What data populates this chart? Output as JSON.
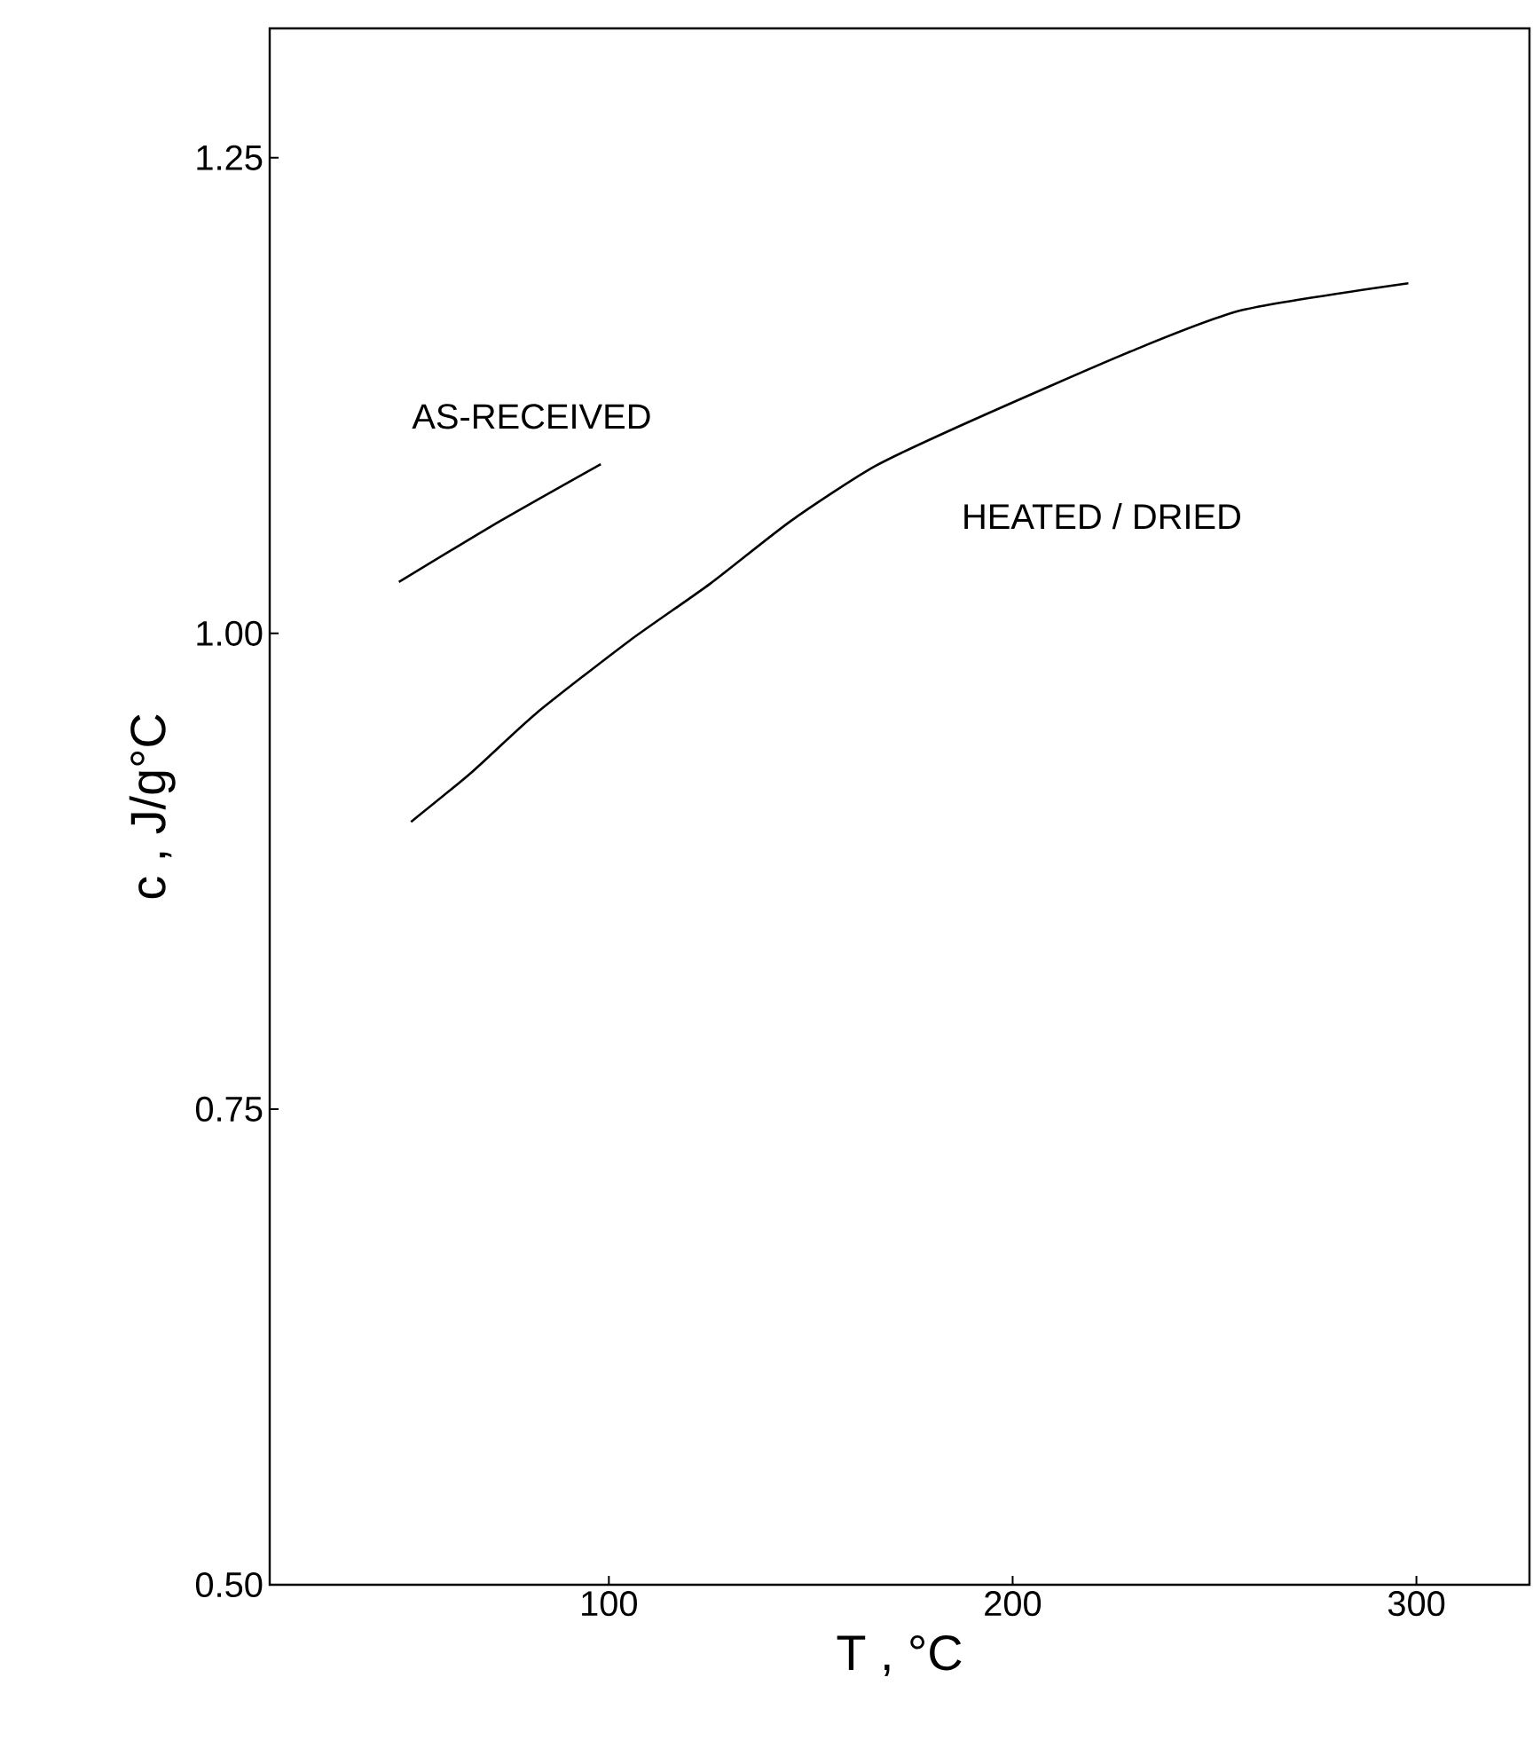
{
  "chart_data": {
    "type": "line",
    "xlabel": "T ,  °C",
    "ylabel": "c ,   J/g°C",
    "xlim": [
      16,
      328
    ],
    "ylim": [
      0.5,
      1.318
    ],
    "xticks": [
      100,
      200,
      300
    ],
    "yticks": [
      {
        "value": 0.5,
        "label": "0.50"
      },
      {
        "value": 0.75,
        "label": "0.75"
      },
      {
        "value": 1.0,
        "label": "1.00"
      },
      {
        "value": 1.25,
        "label": "1.25"
      }
    ],
    "marker": "none",
    "line_style": "solid",
    "series": [
      {
        "name": "AS-RECEIVED",
        "color": "#000000",
        "x": [
          48,
          73,
          98
        ],
        "values": [
          1.027,
          1.059,
          1.089
        ]
      },
      {
        "name": "HEATED / DRIED",
        "color": "#000000",
        "x": [
          51,
          66,
          82,
          105,
          125,
          145,
          166,
          190,
          229,
          257,
          298
        ],
        "values": [
          0.901,
          0.927,
          0.958,
          0.996,
          1.026,
          1.059,
          1.088,
          1.112,
          1.148,
          1.17,
          1.184
        ]
      }
    ]
  }
}
